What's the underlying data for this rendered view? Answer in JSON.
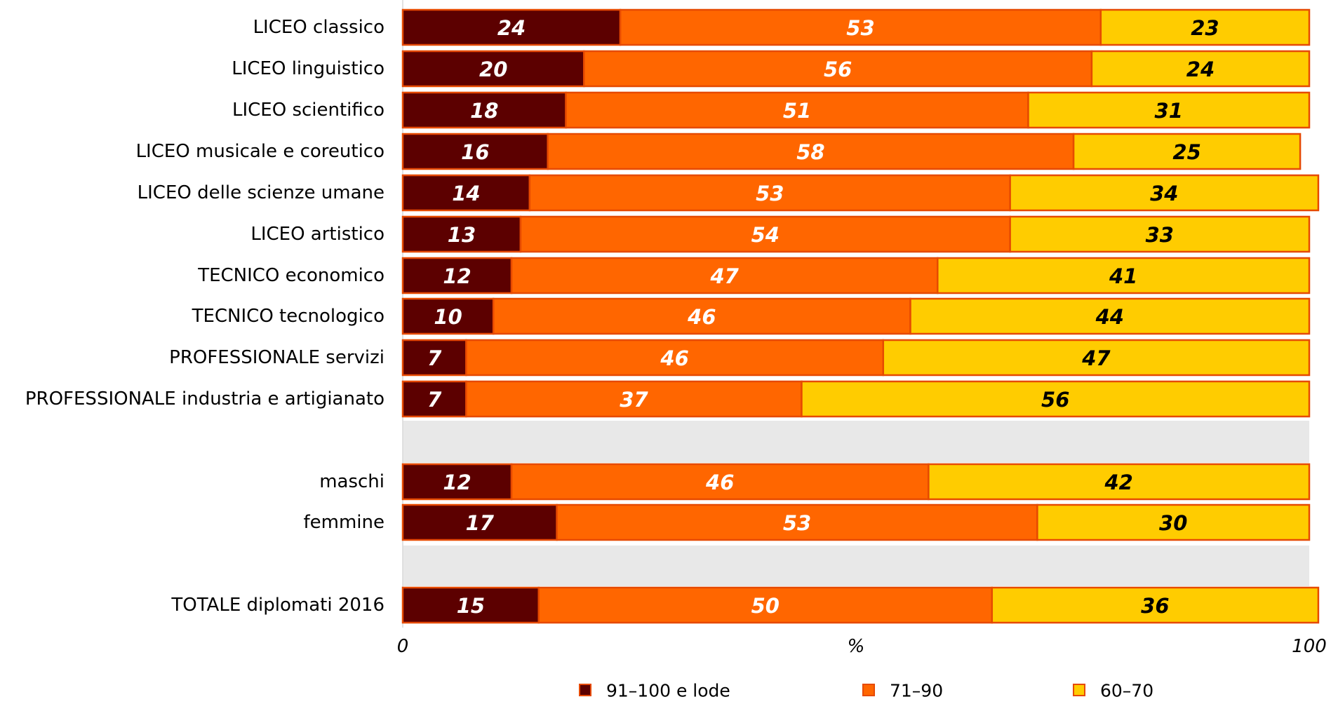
{
  "chart_data": {
    "type": "bar",
    "orientation": "horizontal",
    "stacked": true,
    "xlabel": "%",
    "xlim": [
      0,
      100
    ],
    "x_ticks": [
      "0",
      "100"
    ],
    "grid": false,
    "legend_position": "bottom",
    "categories": [
      "LICEO classico",
      "LICEO linguistico",
      "LICEO scientifico",
      "LICEO musicale e coreutico",
      "LICEO delle scienze umane",
      "LICEO artistico",
      "TECNICO economico",
      "TECNICO tecnologico",
      "PROFESSIONALE servizi",
      "PROFESSIONALE industria e artigianato",
      "maschi",
      "femmine",
      "TOTALE diplomati 2016"
    ],
    "series": [
      {
        "name": "91–100 e lode",
        "color": "#5c0000",
        "label_color": "#ffffff",
        "values": [
          24,
          20,
          18,
          16,
          14,
          13,
          12,
          10,
          7,
          7,
          12,
          17,
          15
        ]
      },
      {
        "name": "71–90",
        "color": "#ff6600",
        "label_color": "#ffffff",
        "values": [
          53,
          56,
          51,
          58,
          53,
          54,
          47,
          46,
          46,
          37,
          46,
          53,
          50
        ]
      },
      {
        "name": "60–70",
        "color": "#ffcc00",
        "label_color": "#000000",
        "values": [
          23,
          24,
          31,
          25,
          34,
          33,
          41,
          44,
          47,
          56,
          42,
          30,
          36
        ]
      }
    ],
    "separator_color": "#e8e8e8",
    "bar_outline_color": "#e64a00"
  }
}
